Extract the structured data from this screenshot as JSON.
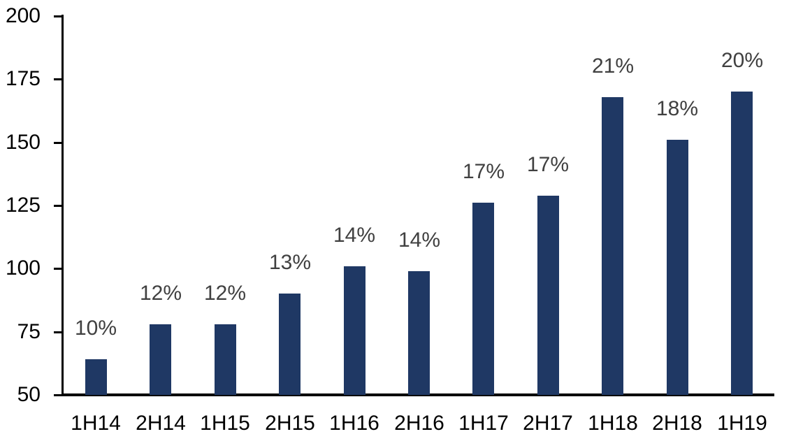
{
  "chart_data": {
    "type": "bar",
    "title": "",
    "xlabel": "",
    "ylabel": "",
    "categories": [
      "1H14",
      "2H14",
      "1H15",
      "2H15",
      "1H16",
      "2H16",
      "1H17",
      "2H17",
      "1H18",
      "2H18",
      "1H19"
    ],
    "values": [
      64,
      78,
      78,
      90,
      101,
      99,
      126,
      129,
      168,
      151,
      170
    ],
    "bar_labels": [
      "10%",
      "12%",
      "12%",
      "13%",
      "14%",
      "14%",
      "17%",
      "17%",
      "21%",
      "18%",
      "20%"
    ],
    "ylim": [
      50,
      200
    ],
    "yticks": [
      50,
      75,
      100,
      125,
      150,
      175,
      200
    ],
    "grid": false,
    "legend": false,
    "colors": {
      "bar": "#1F3864",
      "data_label": "#404040",
      "axis_text": "#000000",
      "axis_line": "#000000",
      "background": "#FFFFFF"
    }
  }
}
